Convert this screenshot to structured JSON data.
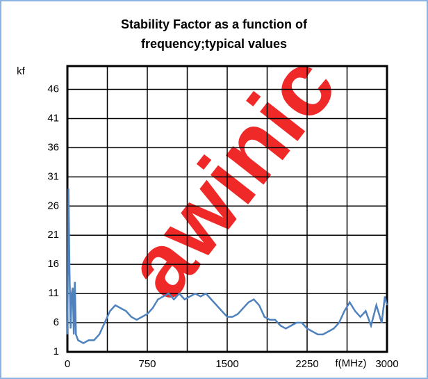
{
  "chart_data": {
    "type": "line",
    "title": [
      "Stability Factor as a function of",
      "frequency;typical values"
    ],
    "ylabel": "kf",
    "xlabel": "f(MHz)",
    "watermark": "awinic",
    "x": [
      0,
      10,
      20,
      30,
      40,
      50,
      60,
      70,
      80,
      100,
      150,
      200,
      250,
      300,
      350,
      400,
      450,
      500,
      550,
      600,
      650,
      700,
      750,
      800,
      850,
      900,
      950,
      1000,
      1050,
      1100,
      1150,
      1200,
      1250,
      1300,
      1350,
      1400,
      1450,
      1500,
      1550,
      1600,
      1650,
      1700,
      1750,
      1800,
      1850,
      1900,
      1950,
      2000,
      2050,
      2100,
      2150,
      2200,
      2250,
      2300,
      2350,
      2400,
      2450,
      2500,
      2550,
      2600,
      2650,
      2700,
      2750,
      2800,
      2850,
      2900,
      2950,
      2980,
      3000
    ],
    "series": [
      {
        "name": "kf",
        "color": "#4f81bd",
        "values": [
          4,
          29,
          15,
          5,
          11,
          12,
          4,
          13,
          4,
          3,
          2.5,
          3,
          3,
          4,
          6,
          8,
          9,
          8.5,
          8,
          7,
          6.5,
          7,
          7.5,
          8.5,
          10,
          10.5,
          11,
          10,
          11,
          10,
          10.5,
          11,
          10.5,
          11,
          10,
          9,
          8,
          7,
          7,
          7.5,
          8.5,
          9.5,
          10,
          9,
          7,
          6.5,
          6.5,
          5.5,
          5,
          5.5,
          6,
          6,
          5,
          4.5,
          4,
          4,
          4.5,
          5,
          6,
          8,
          9.5,
          8,
          7,
          8,
          5.5,
          9,
          6,
          10.5,
          9
        ]
      }
    ],
    "xlim": [
      0,
      3000
    ],
    "xticks": [
      0,
      750,
      1500,
      2250,
      3000
    ],
    "xgrid": [
      375,
      750,
      1125,
      1500,
      1875,
      2250,
      2625
    ],
    "ylim": [
      1,
      50
    ],
    "yticks": [
      1,
      6,
      11,
      16,
      21,
      26,
      31,
      36,
      41,
      46
    ],
    "grid": true
  }
}
